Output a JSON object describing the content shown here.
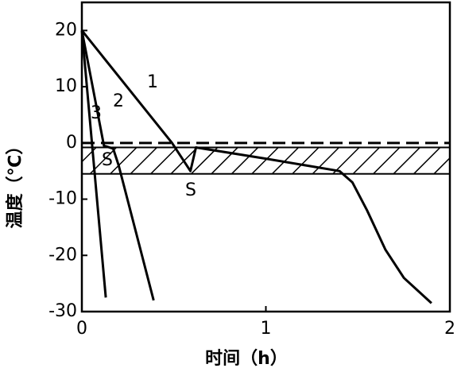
{
  "chart_data": {
    "type": "line",
    "x_label": "时间（h）",
    "y_label": "温度（℃）",
    "xlim": [
      0,
      2
    ],
    "ylim": [
      -30,
      25
    ],
    "xticks": [
      0,
      1,
      2
    ],
    "yticks": [
      20,
      10,
      0,
      -10,
      -20,
      -30
    ],
    "band": [
      -5.5,
      -0.8
    ],
    "annotations": [
      "S",
      "S"
    ],
    "series": [
      {
        "name": "1",
        "color": "#000000",
        "x": [
          0,
          0.49,
          0.59,
          0.62,
          1.0,
          1.4,
          1.47,
          1.55,
          1.65,
          1.75,
          1.9
        ],
        "values": [
          20,
          0,
          -5,
          -0.8,
          -2.8,
          -5,
          -7,
          -12,
          -19,
          -24,
          -28.5
        ]
      },
      {
        "name": "2",
        "color": "#000000",
        "x": [
          0,
          0.12,
          0.17,
          0.2,
          0.39
        ],
        "values": [
          20,
          -0.5,
          -1,
          -4,
          -28
        ]
      },
      {
        "name": "3",
        "color": "#000000",
        "x": [
          0,
          0.13
        ],
        "values": [
          20,
          -27.5
        ]
      }
    ]
  }
}
